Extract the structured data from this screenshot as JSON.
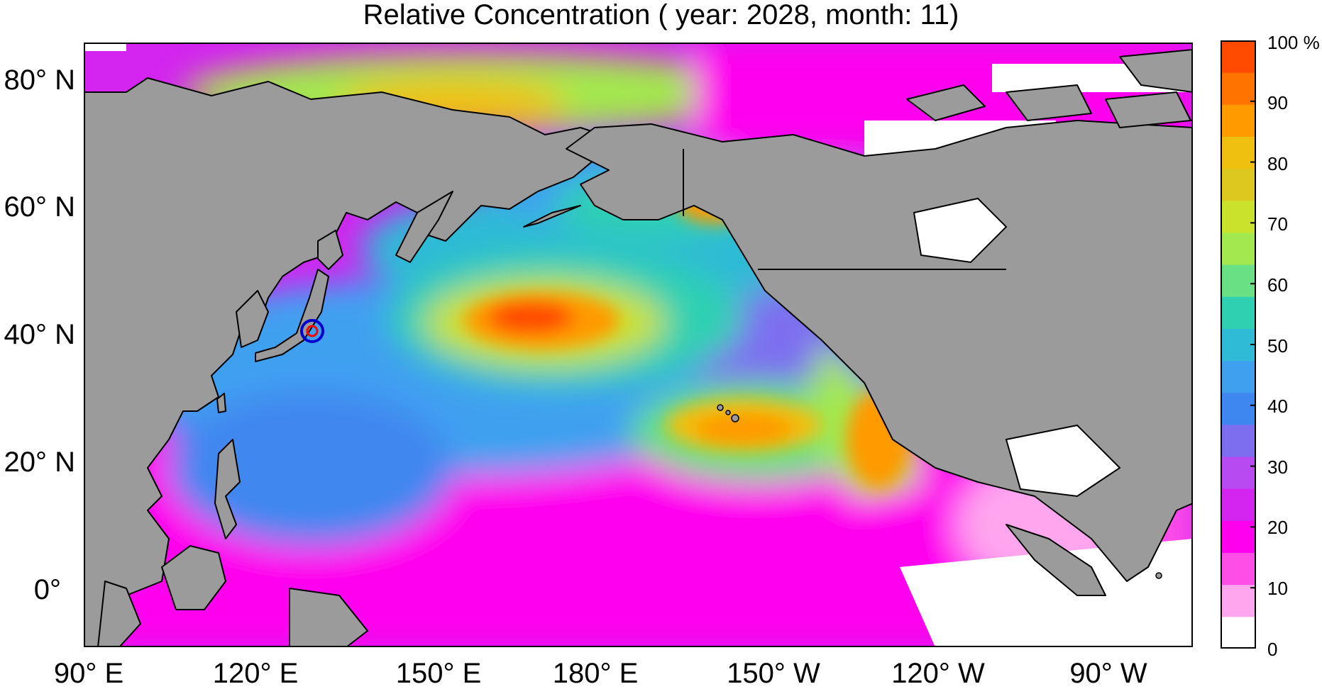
{
  "title": "Relative Concentration ( year: 2028, month: 11)",
  "lat_labels": [
    "80° N",
    "60° N",
    "40° N",
    "20° N",
    "0°"
  ],
  "lon_labels": [
    "90° E",
    "120° E",
    "150° E",
    "180° E",
    "150° W",
    "120° W",
    "90° W"
  ],
  "colorbar": {
    "tick_labels": [
      "100 %",
      "90",
      "80",
      "70",
      "60",
      "50",
      "40",
      "30",
      "20",
      "10",
      "0"
    ],
    "colors": [
      "#ffffff",
      "#ffa6ee",
      "#ff4ee8",
      "#ff00ee",
      "#d324f0",
      "#b74af0",
      "#7d6ef0",
      "#3f87f0",
      "#40a0f0",
      "#2fbad6",
      "#2fd0b2",
      "#68e083",
      "#a3e84e",
      "#cbe22d",
      "#dcc81e",
      "#f0c010",
      "#ff9a00",
      "#ff7400",
      "#ff4a00"
    ]
  },
  "marker": {
    "name": "observation site",
    "colors": {
      "outer": "#0000cc",
      "inner": "#ff0000"
    }
  },
  "colors": {
    "land": "#9b9b9b",
    "coast": "#000000"
  }
}
